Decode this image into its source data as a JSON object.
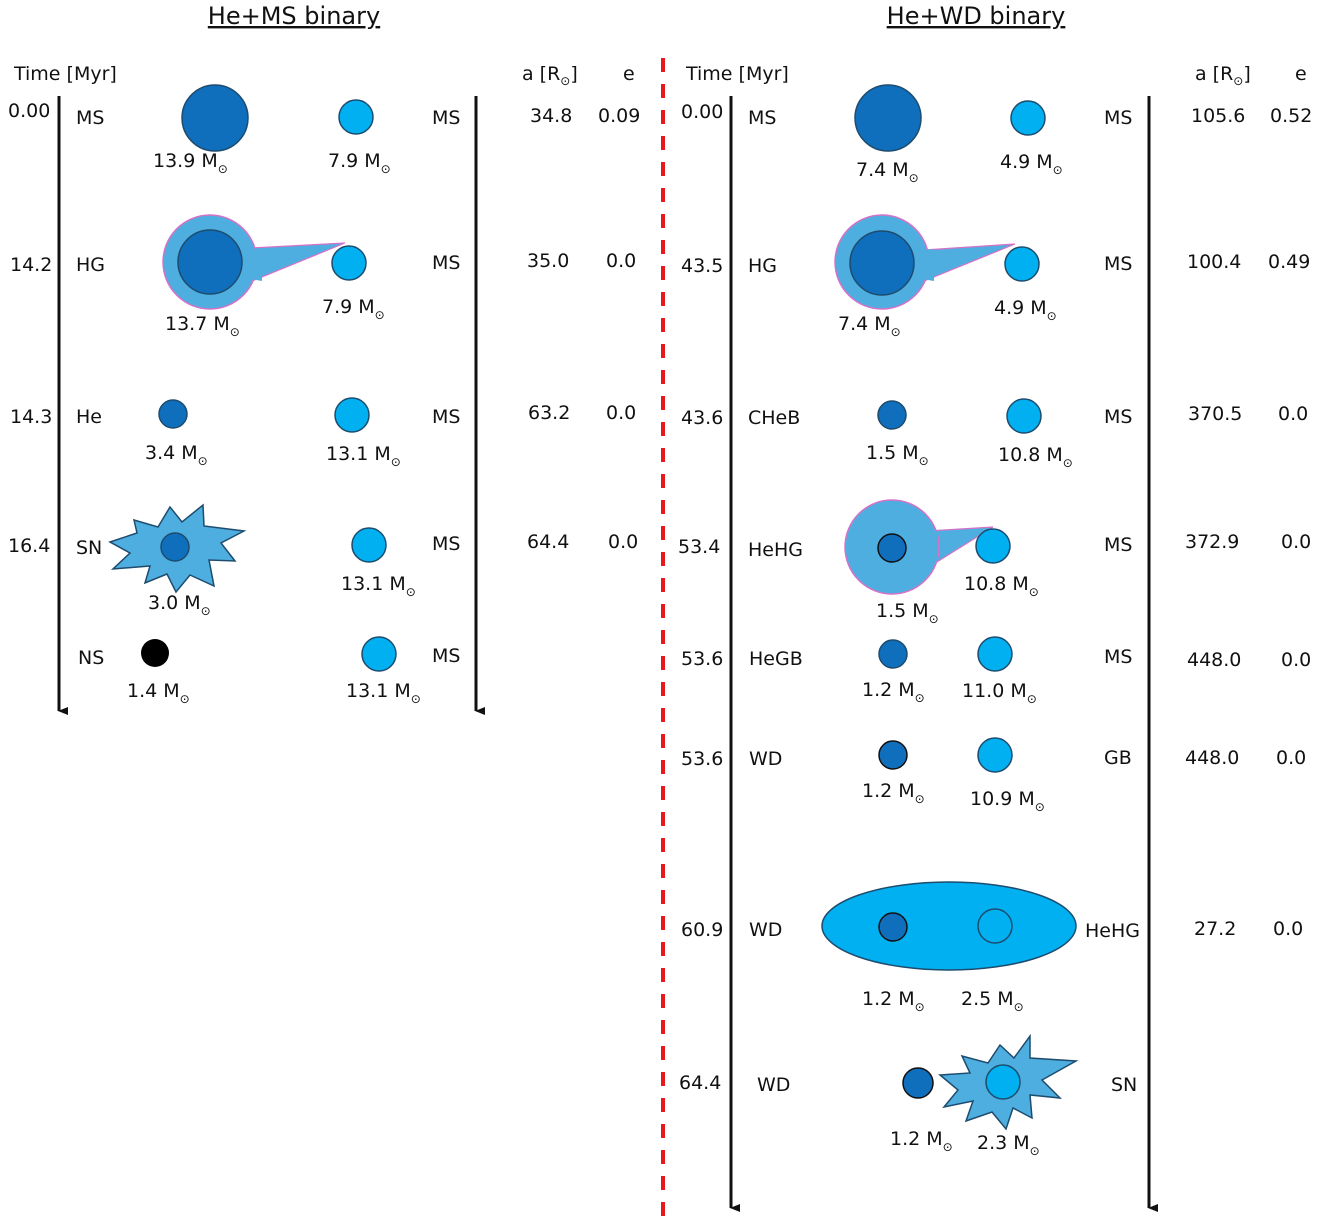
{
  "colors": {
    "dark_star": "#0f6fbd",
    "light_star": "#00b0f0",
    "envelope": "#4faee0",
    "envelope_edge": "#d572c8",
    "star_edge": "#1d4c6e",
    "divider": "#e8191d",
    "remnant": "#000000"
  },
  "symbols": {
    "msun_label": "M",
    "msun_sub": "⊙",
    "rsun_sub": "⊙"
  },
  "left": {
    "title": "He+MS binary",
    "time_header": "Time [Myr]",
    "a_header": "a [R",
    "e_header": "e",
    "rows": [
      {
        "time": "0.00",
        "state1": "MS",
        "state2": "MS",
        "mass1": "13.9",
        "mass2": "7.9",
        "a": "34.8",
        "e": "0.09"
      },
      {
        "time": "14.2",
        "state1": "HG",
        "state2": "MS",
        "mass1": "13.7",
        "mass2": "7.9",
        "a": "35.0",
        "e": "0.0"
      },
      {
        "time": "14.3",
        "state1": "He",
        "state2": "MS",
        "mass1": "3.4",
        "mass2": "13.1",
        "a": "63.2",
        "e": "0.0"
      },
      {
        "time": "16.4",
        "state1": "SN",
        "state2": "MS",
        "mass1": "3.0",
        "mass2": "13.1",
        "a": "64.4",
        "e": "0.0"
      },
      {
        "time": "",
        "state1": "NS",
        "state2": "MS",
        "mass1": "1.4",
        "mass2": "13.1",
        "a": "",
        "e": ""
      }
    ]
  },
  "right": {
    "title": "He+WD binary",
    "time_header": "Time [Myr]",
    "a_header": "a [R",
    "e_header": "e",
    "rows": [
      {
        "time": "0.00",
        "state1": "MS",
        "state2": "MS",
        "mass1": "7.4",
        "mass2": "4.9",
        "a": "105.6",
        "e": "0.52"
      },
      {
        "time": "43.5",
        "state1": "HG",
        "state2": "MS",
        "mass1": "7.4",
        "mass2": "4.9",
        "a": "100.4",
        "e": "0.49"
      },
      {
        "time": "43.6",
        "state1": "CHeB",
        "state2": "MS",
        "mass1": "1.5",
        "mass2": "10.8",
        "a": "370.5",
        "e": "0.0"
      },
      {
        "time": "53.4",
        "state1": "HeHG",
        "state2": "MS",
        "mass1": "1.5",
        "mass2": "10.8",
        "a": "372.9",
        "e": "0.0"
      },
      {
        "time": "53.6",
        "state1": "HeGB",
        "state2": "MS",
        "mass1": "1.2",
        "mass2": "11.0",
        "a": "448.0",
        "e": "0.0"
      },
      {
        "time": "53.6",
        "state1": "WD",
        "state2": "GB",
        "mass1": "1.2",
        "mass2": "10.9",
        "a": "448.0",
        "e": "0.0"
      },
      {
        "time": "60.9",
        "state1": "WD",
        "state2": "HeHG",
        "mass1": "1.2",
        "mass2": "2.5",
        "a": "27.2",
        "e": "0.0"
      },
      {
        "time": "64.4",
        "state1": "WD",
        "state2": "SN",
        "mass1": "1.2",
        "mass2": "2.3",
        "a": "",
        "e": ""
      }
    ]
  }
}
